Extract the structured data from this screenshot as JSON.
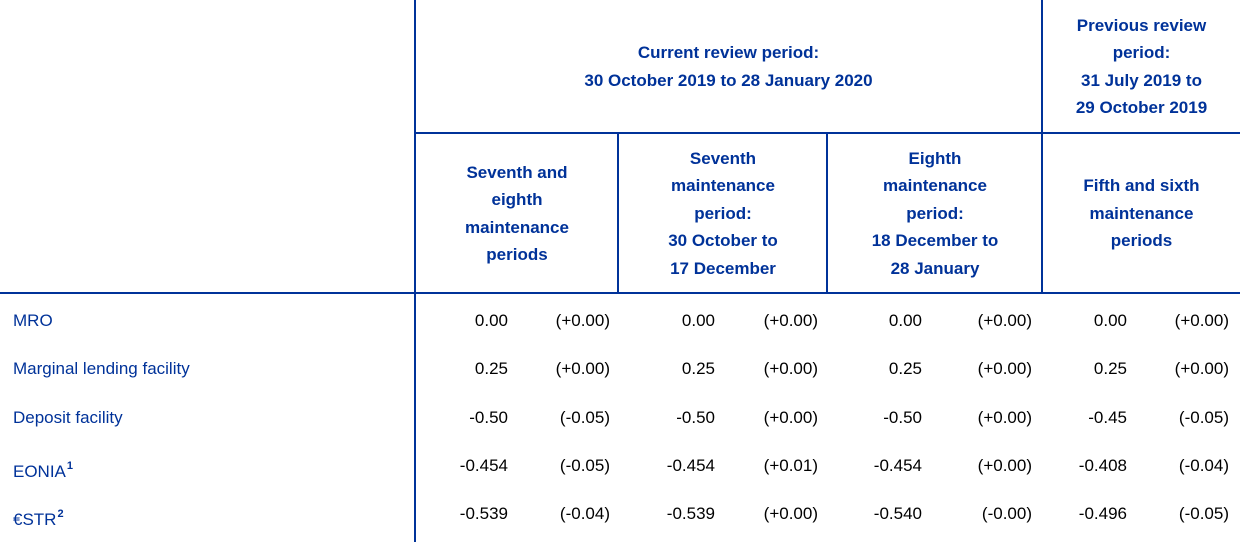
{
  "table": {
    "header": {
      "current": [
        "Current review period:",
        "30 October 2019 to 28 January 2020"
      ],
      "previous": [
        "Previous review",
        "period:",
        "31 July 2019 to",
        "29 October 2019"
      ],
      "columns": [
        [
          "Seventh and",
          "eighth",
          "maintenance",
          "periods"
        ],
        [
          "Seventh",
          "maintenance",
          "period:",
          "30 October to",
          "17 December"
        ],
        [
          "Eighth",
          "maintenance",
          "period:",
          "18 December to",
          "28 January"
        ],
        [
          "Fifth and sixth",
          "maintenance",
          "periods"
        ]
      ]
    },
    "rows": [
      {
        "label": "MRO",
        "cells": [
          [
            "0.00",
            "(+0.00)"
          ],
          [
            "0.00",
            "(+0.00)"
          ],
          [
            "0.00",
            "(+0.00)"
          ],
          [
            "0.00",
            "(+0.00)"
          ]
        ]
      },
      {
        "label": "Marginal lending facility",
        "cells": [
          [
            "0.25",
            "(+0.00)"
          ],
          [
            "0.25",
            "(+0.00)"
          ],
          [
            "0.25",
            "(+0.00)"
          ],
          [
            "0.25",
            "(+0.00)"
          ]
        ]
      },
      {
        "label": "Deposit facility",
        "cells": [
          [
            "-0.50",
            "(-0.05)"
          ],
          [
            "-0.50",
            "(+0.00)"
          ],
          [
            "-0.50",
            "(+0.00)"
          ],
          [
            "-0.45",
            "(-0.05)"
          ]
        ]
      },
      {
        "label": "EONIA",
        "note": "1",
        "cells": [
          [
            "-0.454",
            "(-0.05)"
          ],
          [
            "-0.454",
            "(+0.01)"
          ],
          [
            "-0.454",
            "(+0.00)"
          ],
          [
            "-0.408",
            "(-0.04)"
          ]
        ]
      },
      {
        "label": "€STR",
        "note": "2",
        "cells": [
          [
            "-0.539",
            "(-0.04)"
          ],
          [
            "-0.539",
            "(+0.00)"
          ],
          [
            "-0.540",
            "(-0.00)"
          ],
          [
            "-0.496",
            "(-0.05)"
          ]
        ]
      }
    ]
  }
}
